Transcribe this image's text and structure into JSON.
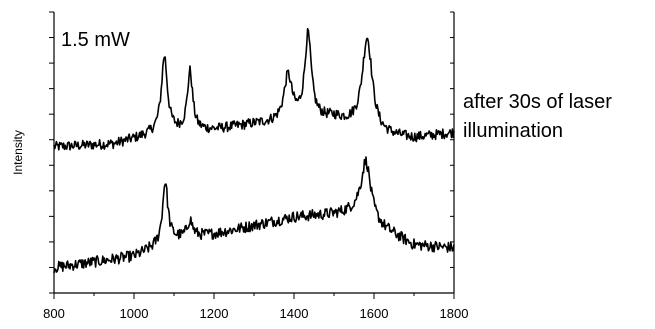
{
  "chart_data": {
    "type": "line",
    "xlabel": "",
    "ylabel": "Intensity",
    "xlim": [
      800,
      1800
    ],
    "xticks": [
      800,
      1000,
      1200,
      1400,
      1600,
      1800
    ],
    "y_axis_numbers_shown": false,
    "power_label": "1.5 mW",
    "annotation_lines": [
      "after 30s of laser",
      "illumination"
    ],
    "series": [
      {
        "position": "top",
        "offset": 0.52,
        "noise": 0.018,
        "baseline": [
          [
            800,
            0.0
          ],
          [
            950,
            0.01
          ],
          [
            1060,
            0.05
          ],
          [
            1200,
            0.06
          ],
          [
            1300,
            0.08
          ],
          [
            1500,
            0.1
          ],
          [
            1620,
            0.04
          ],
          [
            1700,
            0.03
          ],
          [
            1800,
            0.05
          ]
        ],
        "peaks": [
          {
            "center": 1076,
            "height": 0.27,
            "width": 9
          },
          {
            "center": 1140,
            "height": 0.21,
            "width": 8
          },
          {
            "center": 1385,
            "height": 0.16,
            "width": 12
          },
          {
            "center": 1435,
            "height": 0.3,
            "width": 10
          },
          {
            "center": 1583,
            "height": 0.33,
            "width": 15
          }
        ]
      },
      {
        "position": "bottom",
        "offset": 0.09,
        "noise": 0.02,
        "baseline": [
          [
            800,
            0.0
          ],
          [
            900,
            0.02
          ],
          [
            1000,
            0.04
          ],
          [
            1100,
            0.1
          ],
          [
            1200,
            0.12
          ],
          [
            1300,
            0.15
          ],
          [
            1400,
            0.18
          ],
          [
            1500,
            0.19
          ],
          [
            1560,
            0.2
          ],
          [
            1620,
            0.14
          ],
          [
            1700,
            0.08
          ],
          [
            1800,
            0.07
          ]
        ],
        "peaks": [
          {
            "center": 1078,
            "height": 0.22,
            "width": 8
          },
          {
            "center": 1140,
            "height": 0.06,
            "width": 8
          },
          {
            "center": 1580,
            "height": 0.2,
            "width": 14
          }
        ]
      }
    ]
  }
}
